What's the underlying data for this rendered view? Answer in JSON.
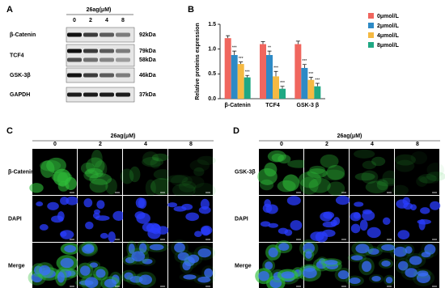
{
  "panel_a": {
    "label": "A",
    "treatment": "26ag(μM)",
    "doses": [
      "0",
      "2",
      "4",
      "8"
    ],
    "rows": [
      {
        "protein": "β-Catenin",
        "bands": [
          "92kDa"
        ]
      },
      {
        "protein": "TCF4",
        "bands": [
          "79kDa",
          "58kDa"
        ]
      },
      {
        "protein": "GSK-3β",
        "bands": [
          "46kDa"
        ]
      },
      {
        "protein": "GAPDH",
        "bands": [
          "37kDa"
        ]
      }
    ]
  },
  "panel_b_label": "B",
  "chart_data": {
    "type": "bar",
    "y_label": "Relative proteins expression",
    "categories": [
      "β-Catenin",
      "TCF4",
      "GSK-3 β"
    ],
    "series": [
      {
        "name": "0μmol/L",
        "color": "#f0665e",
        "values": [
          1.22,
          1.1,
          1.1
        ],
        "errors": [
          0.05,
          0.05,
          0.06
        ]
      },
      {
        "name": "2μmol/L",
        "color": "#2d8ac6",
        "values": [
          0.88,
          0.88,
          0.62
        ],
        "errors": [
          0.08,
          0.08,
          0.07
        ],
        "stars": [
          "***",
          "**",
          "***"
        ]
      },
      {
        "name": "4μmol/L",
        "color": "#f5b942",
        "values": [
          0.7,
          0.45,
          0.38
        ],
        "errors": [
          0.04,
          0.1,
          0.05
        ],
        "stars": [
          "***",
          "***",
          "***"
        ]
      },
      {
        "name": "8μmol/L",
        "color": "#1fa883",
        "values": [
          0.43,
          0.2,
          0.25
        ],
        "errors": [
          0.04,
          0.05,
          0.06
        ],
        "stars": [
          "***",
          "***",
          "***"
        ]
      }
    ],
    "ylim": [
      0,
      1.5
    ],
    "yticks": [
      {
        "value": 0,
        "label": "0.0"
      },
      {
        "value": 0.5,
        "label": "0.5"
      },
      {
        "value": 1,
        "label": "1.0"
      },
      {
        "value": 1.5,
        "label": "1.5"
      }
    ],
    "legend": "top-right"
  },
  "panel_c": {
    "label": "C",
    "treatment": "26ag(μM)",
    "doses": [
      "0",
      "2",
      "4",
      "8"
    ],
    "rows": [
      "β-Catenin",
      "DAPI",
      "Merge"
    ]
  },
  "panel_d": {
    "label": "D",
    "treatment": "26ag(μM)",
    "doses": [
      "0",
      "2",
      "4",
      "8"
    ],
    "rows": [
      "GSK-3β",
      "DAPI",
      "Merge"
    ]
  }
}
